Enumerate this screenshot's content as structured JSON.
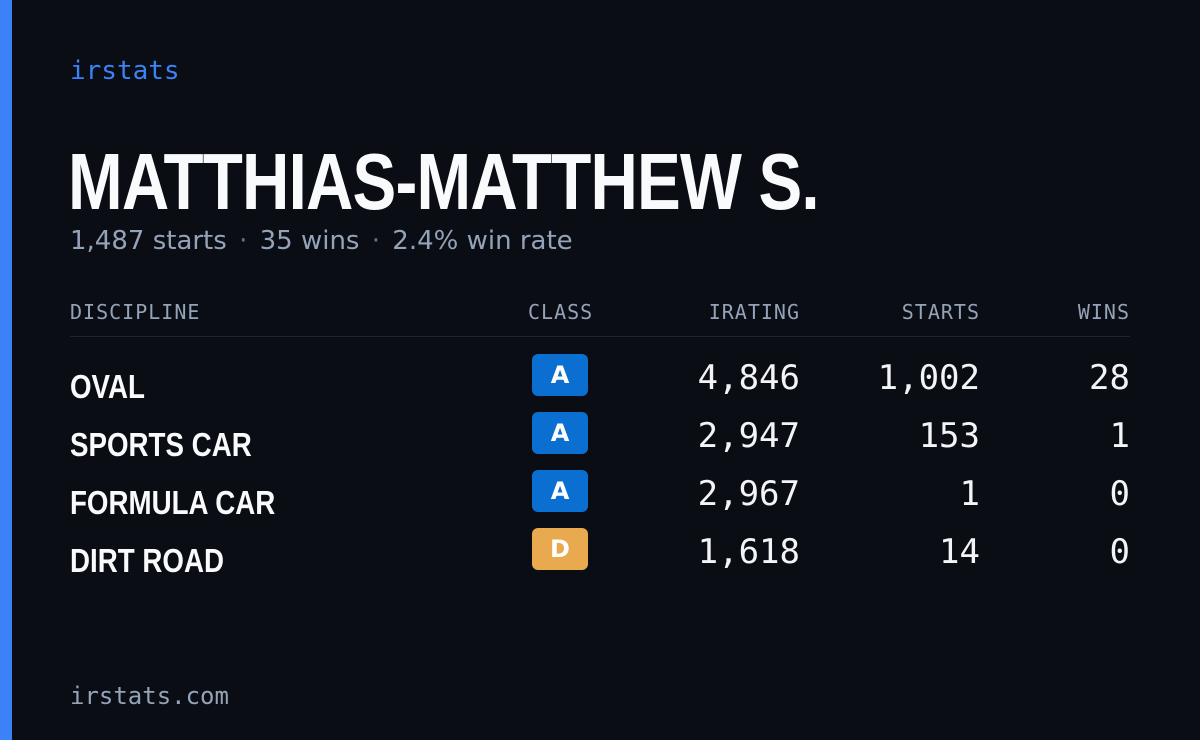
{
  "brand": {
    "name": "irstats",
    "accent_color": "#3b82f6"
  },
  "driver": {
    "name": "MATTHIAS-MATTHEW S.",
    "starts_text": "1,487 starts",
    "wins_text": "35 wins",
    "win_rate_text": "2.4% win rate",
    "separator": "·"
  },
  "table": {
    "headers": {
      "discipline": "DISCIPLINE",
      "class": "CLASS",
      "irating": "IRATING",
      "starts": "STARTS",
      "wins": "WINS"
    },
    "rows": [
      {
        "discipline": "OVAL",
        "class": "A",
        "class_color": "#0b6fd1",
        "irating": "4,846",
        "starts": "1,002",
        "wins": "28"
      },
      {
        "discipline": "SPORTS CAR",
        "class": "A",
        "class_color": "#0b6fd1",
        "irating": "2,947",
        "starts": "153",
        "wins": "1"
      },
      {
        "discipline": "FORMULA CAR",
        "class": "A",
        "class_color": "#0b6fd1",
        "irating": "2,967",
        "starts": "1",
        "wins": "0"
      },
      {
        "discipline": "DIRT ROAD",
        "class": "D",
        "class_color": "#e9a94f",
        "irating": "1,618",
        "starts": "14",
        "wins": "0"
      }
    ]
  },
  "footer": {
    "url": "irstats.com"
  }
}
